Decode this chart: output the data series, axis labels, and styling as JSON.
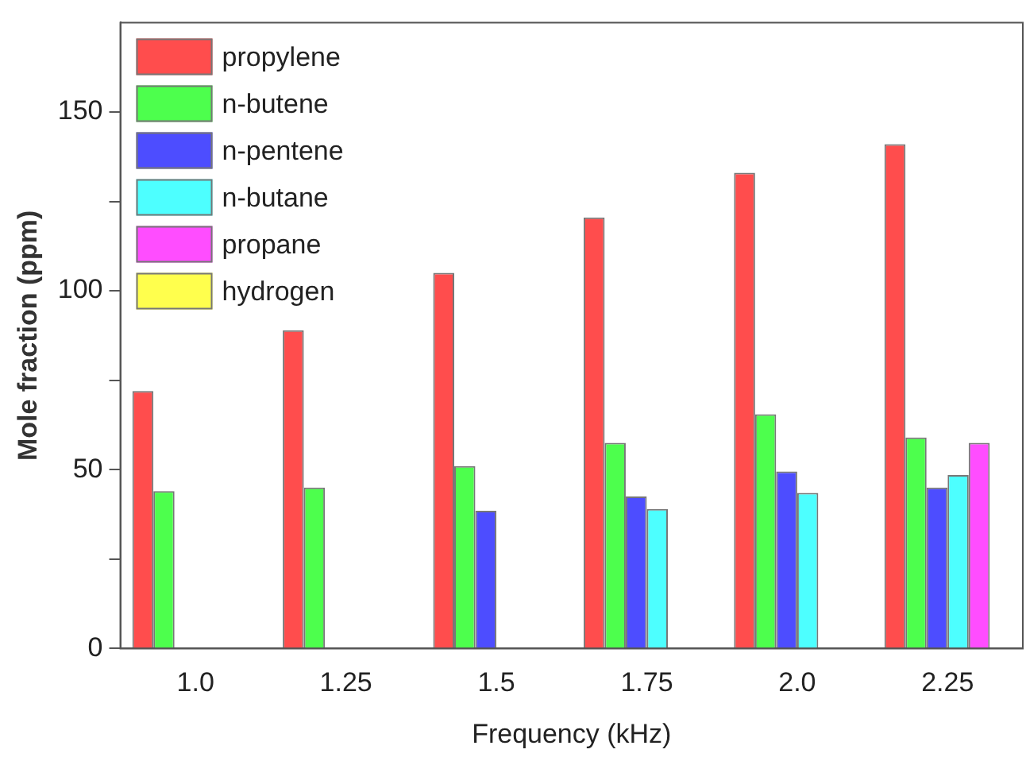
{
  "chart_data": {
    "type": "bar",
    "xlabel": "Frequency (kHz)",
    "ylabel": "Mole fraction (ppm)",
    "categories": [
      "1.0",
      "1.25",
      "1.5",
      "1.75",
      "2.0",
      "2.25"
    ],
    "series": [
      {
        "name": "propylene",
        "color": "#ff4d4d",
        "values": [
          72,
          89,
          105,
          120.5,
          133,
          141
        ]
      },
      {
        "name": "n-butene",
        "color": "#4dff4d",
        "values": [
          44,
          45,
          51,
          57.5,
          65.5,
          59
        ]
      },
      {
        "name": "n-pentene",
        "color": "#4d4dff",
        "values": [
          null,
          null,
          38.5,
          42.5,
          49.5,
          45
        ]
      },
      {
        "name": "n-butane",
        "color": "#4dffff",
        "values": [
          null,
          null,
          null,
          39,
          43.5,
          48.5
        ]
      },
      {
        "name": "propane",
        "color": "#ff4dff",
        "values": [
          null,
          null,
          null,
          null,
          null,
          57.5
        ]
      },
      {
        "name": "hydrogen",
        "color": "#ffff4d",
        "values": [
          null,
          null,
          null,
          null,
          null,
          null
        ]
      }
    ],
    "ylim": [
      0,
      175
    ],
    "yticks": [
      0,
      {
        "value": 25,
        "label": null
      },
      50,
      {
        "value": 75,
        "label": null
      },
      100,
      {
        "value": 125,
        "label": null
      },
      150
    ],
    "grid": false,
    "legend": "top left"
  }
}
